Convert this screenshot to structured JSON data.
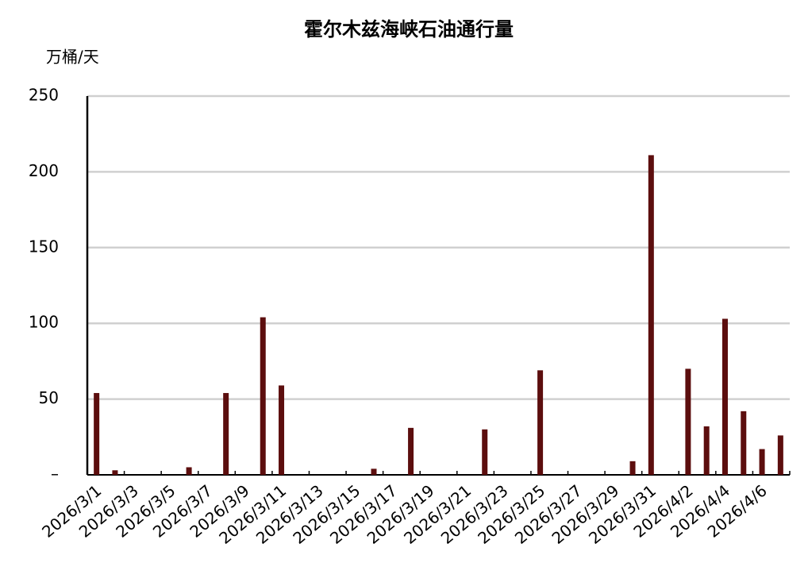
{
  "chart_data": {
    "type": "bar",
    "title": "霍尔木兹海峡石油通行量",
    "y_axis_label": "万桶/天",
    "categories": [
      "2026/3/1",
      null,
      "2026/3/3",
      null,
      "2026/3/5",
      null,
      "2026/3/7",
      null,
      "2026/3/9",
      null,
      "2026/3/11",
      null,
      "2026/3/13",
      null,
      "2026/3/15",
      null,
      "2026/3/17",
      null,
      "2026/3/19",
      null,
      "2026/3/21",
      null,
      "2026/3/23",
      null,
      "2026/3/25",
      null,
      "2026/3/27",
      null,
      "2026/3/29",
      null,
      "2026/3/31",
      null,
      "2026/4/2",
      null,
      "2026/4/4",
      null,
      "2026/4/6",
      null
    ],
    "values": [
      54,
      3,
      0,
      0,
      0,
      5,
      0,
      54,
      0,
      104,
      59,
      0,
      0,
      0,
      0,
      4,
      0,
      31,
      0,
      0,
      0,
      30,
      0,
      0,
      69,
      0,
      0,
      0,
      0,
      9,
      211,
      0,
      70,
      32,
      103,
      42,
      17,
      26
    ],
    "color": "#5c0e0e",
    "ylim": [
      0,
      250
    ],
    "yticks": [
      {
        "value": 0,
        "label": "–"
      },
      50,
      100,
      150,
      200,
      250
    ],
    "grid": true
  }
}
